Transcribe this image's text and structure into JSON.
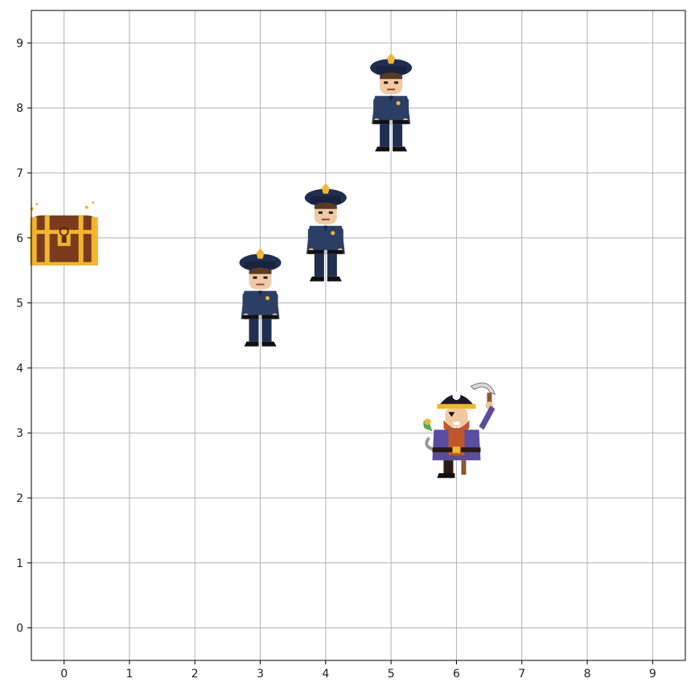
{
  "grid": {
    "x_ticks": [
      "0",
      "1",
      "2",
      "3",
      "4",
      "5",
      "6",
      "7",
      "8",
      "9"
    ],
    "y_ticks": [
      "0",
      "1",
      "2",
      "3",
      "4",
      "5",
      "6",
      "7",
      "8",
      "9"
    ],
    "x_range": [
      -0.5,
      9.5
    ],
    "y_range": [
      -0.5,
      9.5
    ],
    "grid_visible": true,
    "grid_color": "#b0b0b0",
    "frame_color": "#000000"
  },
  "entities": [
    {
      "kind": "treasure-chest",
      "icon": "treasure-chest-icon",
      "x": 0,
      "y": 6
    },
    {
      "kind": "police-officer",
      "icon": "police-officer-icon",
      "x": 3,
      "y": 5
    },
    {
      "kind": "police-officer",
      "icon": "police-officer-icon",
      "x": 4,
      "y": 6
    },
    {
      "kind": "police-officer",
      "icon": "police-officer-icon",
      "x": 5,
      "y": 8
    },
    {
      "kind": "pirate",
      "icon": "pirate-icon",
      "x": 6,
      "y": 3
    }
  ],
  "colors": {
    "police_uniform": "#2b3f66",
    "police_skin": "#f2c9a5",
    "badge_gold": "#f2b632",
    "chest_wood": "#7a3b1c",
    "chest_gold": "#f3b52e",
    "pirate_coat": "#5a4c9e",
    "pirate_beard": "#c2562a"
  }
}
